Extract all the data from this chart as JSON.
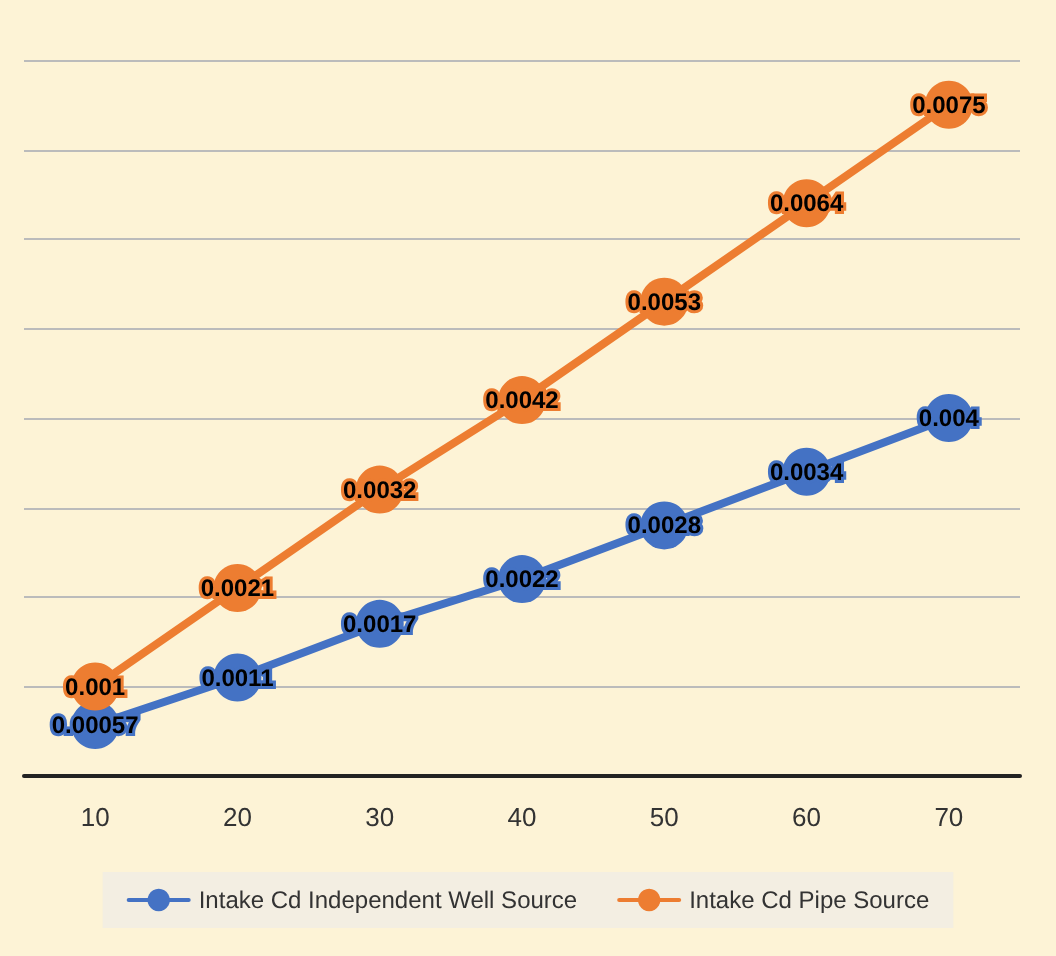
{
  "chart_data": {
    "type": "line",
    "categories": [
      "10",
      "20",
      "30",
      "40",
      "50",
      "60",
      "70"
    ],
    "series": [
      {
        "name": "Intake Cd Independent Well Source",
        "color": "#4472c4",
        "values": [
          0.00057,
          0.0011,
          0.0017,
          0.0022,
          0.0028,
          0.0034,
          0.004
        ]
      },
      {
        "name": "Intake Cd Pipe Source",
        "color": "#ed7d31",
        "values": [
          0.001,
          0.0021,
          0.0032,
          0.0042,
          0.0053,
          0.0064,
          0.0075
        ]
      }
    ],
    "ylim": [
      0,
      0.008
    ],
    "yticks": [
      {
        "value": 0,
        "label": null
      },
      {
        "value": 0.001,
        "label": null
      },
      {
        "value": 0.002,
        "label": null
      },
      {
        "value": 0.003,
        "label": null
      },
      {
        "value": 0.004,
        "label": null
      },
      {
        "value": 0.005,
        "label": null
      },
      {
        "value": 0.006,
        "label": null
      },
      {
        "value": 0.007,
        "label": null
      },
      {
        "value": 0.008,
        "label": null
      }
    ],
    "tick_labels": "x",
    "grid": "y",
    "legend": "bottom",
    "marker": "circle",
    "line_style": "solid",
    "data_labels": true
  }
}
